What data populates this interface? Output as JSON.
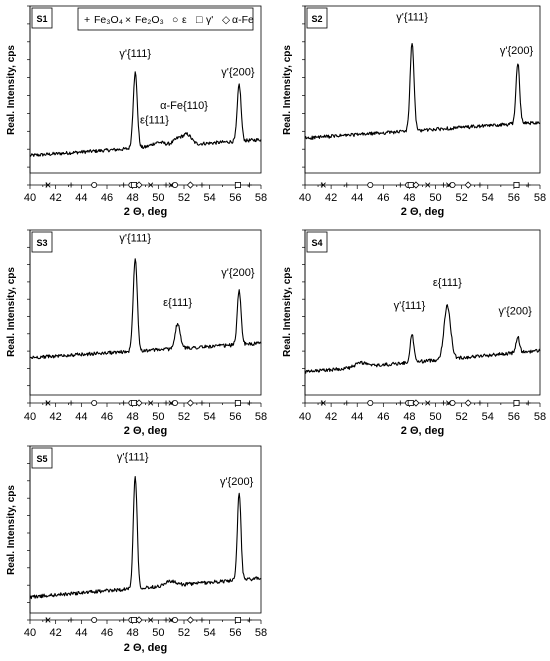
{
  "legend": {
    "items": [
      {
        "symbol": "+",
        "label": "Fe₃O₄"
      },
      {
        "symbol": "×",
        "label": "Fe₂O₃"
      },
      {
        "symbol": "○",
        "label": "ε"
      },
      {
        "symbol": "□",
        "label": "γ'"
      },
      {
        "symbol": "◇",
        "label": "α-Fe"
      }
    ]
  },
  "reference_markers": {
    "Fe3O4": [
      41.3,
      43.2,
      47.3,
      50.6,
      53.4,
      57.1
    ],
    "Fe2O3": [
      41.4,
      49.4,
      51.0
    ],
    "epsilon": [
      45.0,
      47.9,
      51.3
    ],
    "gamma_prime": [
      48.1,
      56.2
    ],
    "alpha_Fe": [
      48.5,
      52.5
    ]
  },
  "chart_data": [
    {
      "type": "line",
      "panel": "S1",
      "xlabel": "2 Θ, deg",
      "ylabel": "Real. Intensity, cps",
      "xlim": [
        40,
        58
      ],
      "xticks": [
        40,
        42,
        44,
        46,
        48,
        50,
        52,
        54,
        56,
        58
      ],
      "baseline": [
        0.12,
        0.23
      ],
      "noise": 0.012,
      "peaks": [
        {
          "center": 48.2,
          "height": 0.52,
          "width": 0.16
        },
        {
          "center": 50.0,
          "height": 0.03,
          "width": 0.5
        },
        {
          "center": 51.6,
          "height": 0.05,
          "width": 0.4
        },
        {
          "center": 52.3,
          "height": 0.06,
          "width": 0.3
        },
        {
          "center": 56.3,
          "height": 0.39,
          "width": 0.15
        }
      ],
      "annotations": [
        {
          "text": "γ'{111}",
          "x": 48.2,
          "y": 0.8
        },
        {
          "text": "ε{111}",
          "x": 49.7,
          "y": 0.34
        },
        {
          "text": "α-Fe{110}",
          "x": 52.0,
          "y": 0.44
        },
        {
          "text": "γ'{200}",
          "x": 56.2,
          "y": 0.67
        }
      ]
    },
    {
      "type": "line",
      "panel": "S2",
      "xlabel": "2 Θ, deg",
      "ylabel": "Real. Intensity, cps",
      "xlim": [
        40,
        58
      ],
      "xticks": [
        40,
        42,
        44,
        46,
        48,
        50,
        52,
        54,
        56,
        58
      ],
      "baseline": [
        0.24,
        0.35
      ],
      "noise": 0.012,
      "peaks": [
        {
          "center": 48.2,
          "height": 0.6,
          "width": 0.15
        },
        {
          "center": 56.3,
          "height": 0.42,
          "width": 0.14
        }
      ],
      "annotations": [
        {
          "text": "γ'{111}",
          "x": 48.2,
          "y": 1.05
        },
        {
          "text": "γ'{200}",
          "x": 56.2,
          "y": 0.82
        }
      ]
    },
    {
      "type": "line",
      "panel": "S3",
      "xlabel": "2 Θ, deg",
      "ylabel": "Real. Intensity, cps",
      "xlim": [
        40,
        58
      ],
      "xticks": [
        40,
        42,
        44,
        46,
        48,
        50,
        52,
        54,
        56,
        58
      ],
      "baseline": [
        0.26,
        0.36
      ],
      "noise": 0.012,
      "peaks": [
        {
          "center": 48.2,
          "height": 0.65,
          "width": 0.16
        },
        {
          "center": 51.5,
          "height": 0.17,
          "width": 0.2
        },
        {
          "center": 56.3,
          "height": 0.38,
          "width": 0.15
        }
      ],
      "annotations": [
        {
          "text": "γ'{111}",
          "x": 48.2,
          "y": 1.07
        },
        {
          "text": "ε{111}",
          "x": 51.5,
          "y": 0.62
        },
        {
          "text": "γ'{200}",
          "x": 56.2,
          "y": 0.83
        }
      ]
    },
    {
      "type": "line",
      "panel": "S4",
      "xlabel": "2 Θ, deg",
      "ylabel": "Real. Intensity, cps",
      "xlim": [
        40,
        58
      ],
      "xticks": [
        40,
        42,
        44,
        46,
        48,
        50,
        52,
        54,
        56,
        58
      ],
      "baseline": [
        0.16,
        0.31
      ],
      "noise": 0.012,
      "peaks": [
        {
          "center": 44.3,
          "height": 0.03,
          "width": 0.4
        },
        {
          "center": 48.2,
          "height": 0.19,
          "width": 0.14
        },
        {
          "center": 50.9,
          "height": 0.37,
          "width": 0.25
        },
        {
          "center": 56.3,
          "height": 0.11,
          "width": 0.13
        }
      ],
      "annotations": [
        {
          "text": "γ'{111}",
          "x": 48.0,
          "y": 0.6
        },
        {
          "text": "ε{111}",
          "x": 50.9,
          "y": 0.76
        },
        {
          "text": "γ'{200}",
          "x": 56.1,
          "y": 0.56
        }
      ]
    },
    {
      "type": "line",
      "panel": "S5",
      "xlabel": "2 Θ, deg",
      "ylabel": "Real. Intensity, cps",
      "xlim": [
        40,
        58
      ],
      "xticks": [
        40,
        42,
        44,
        46,
        48,
        50,
        52,
        54,
        56,
        58
      ],
      "baseline": [
        0.11,
        0.24
      ],
      "noise": 0.012,
      "peaks": [
        {
          "center": 48.2,
          "height": 0.77,
          "width": 0.15
        },
        {
          "center": 50.9,
          "height": 0.03,
          "width": 0.4
        },
        {
          "center": 56.3,
          "height": 0.6,
          "width": 0.14
        }
      ],
      "annotations": [
        {
          "text": "γ'{111}",
          "x": 48.0,
          "y": 1.05
        },
        {
          "text": "γ'{200}",
          "x": 56.1,
          "y": 0.88
        }
      ]
    }
  ]
}
